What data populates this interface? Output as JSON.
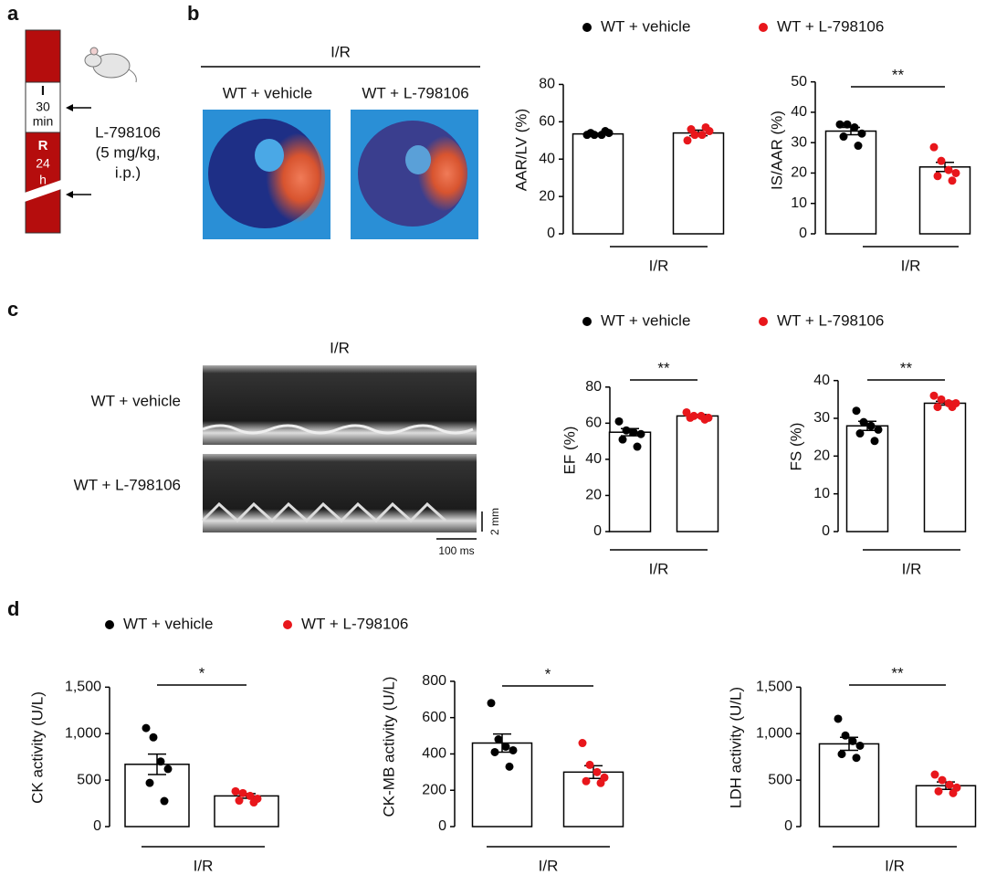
{
  "panel_labels": [
    "a",
    "b",
    "c",
    "d"
  ],
  "panel_a": {
    "phase_i": [
      "I",
      "30",
      "min"
    ],
    "phase_r": [
      "R",
      "24",
      "h"
    ],
    "drug": [
      "L-798106",
      "(5 mg/kg,",
      "i.p.)"
    ]
  },
  "panel_b": {
    "heading": "I/R",
    "image_labels": [
      "WT + vehicle",
      "WT + L-798106"
    ]
  },
  "panel_c": {
    "heading": "I/R",
    "row_labels": [
      "WT + vehicle",
      "WT + L-798106"
    ],
    "scale_bars": [
      "2 mm",
      "100 ms"
    ]
  },
  "legends": [
    {
      "entries": [
        {
          "name": "WT + vehicle",
          "color": "#000000"
        },
        {
          "name": "WT + L-798106",
          "color": "#e8161b"
        }
      ]
    },
    {
      "entries": [
        {
          "name": "WT + vehicle",
          "color": "#000000"
        },
        {
          "name": "WT + L-798106",
          "color": "#e8161b"
        }
      ]
    },
    {
      "entries": [
        {
          "name": "WT + vehicle",
          "color": "#000000"
        },
        {
          "name": "WT + L-798106",
          "color": "#e8161b"
        }
      ]
    }
  ],
  "chart_data": [
    {
      "type": "bar",
      "ylabel": "AAR/LV (%)",
      "xlabel": "I/R",
      "ylim": [
        0,
        90
      ],
      "yticks": [
        0,
        20,
        40,
        60,
        80
      ],
      "series": [
        {
          "color": "#000000",
          "mean": 53.5,
          "sem": 0.4,
          "values": [
            53,
            53,
            53,
            54,
            54,
            55
          ]
        },
        {
          "color": "#e8161b",
          "mean": 54,
          "sem": 1.5,
          "values": [
            50,
            53,
            53,
            55,
            56,
            57
          ]
        }
      ]
    },
    {
      "type": "bar",
      "ylabel": "IS/AAR (%)",
      "xlabel": "I/R",
      "significance": "**",
      "ylim": [
        0,
        55
      ],
      "yticks": [
        0,
        10,
        20,
        30,
        40,
        50
      ],
      "series": [
        {
          "color": "#000000",
          "mean": 33.8,
          "sem": 1.2,
          "values": [
            36,
            36,
            35,
            33,
            32,
            29
          ]
        },
        {
          "color": "#e8161b",
          "mean": 22,
          "sem": 1.5,
          "values": [
            28.5,
            24,
            21,
            20,
            19,
            17.5
          ]
        }
      ]
    },
    {
      "type": "bar",
      "ylabel": "EF (%)",
      "xlabel": "I/R",
      "significance": "**",
      "ylim": [
        0,
        90
      ],
      "yticks": [
        0,
        20,
        40,
        60,
        80
      ],
      "series": [
        {
          "color": "#000000",
          "mean": 55,
          "sem": 2,
          "values": [
            61,
            56,
            55,
            54,
            51,
            47
          ]
        },
        {
          "color": "#e8161b",
          "mean": 64,
          "sem": 0.8,
          "values": [
            66,
            64,
            64,
            63,
            63,
            62
          ]
        }
      ]
    },
    {
      "type": "bar",
      "ylabel": "FS (%)",
      "xlabel": "I/R",
      "significance": "**",
      "ylim": [
        0,
        45
      ],
      "yticks": [
        0,
        10,
        20,
        30,
        40
      ],
      "series": [
        {
          "color": "#000000",
          "mean": 28,
          "sem": 1.2,
          "values": [
            32,
            29,
            28,
            27,
            26,
            24
          ]
        },
        {
          "color": "#e8161b",
          "mean": 34,
          "sem": 0.5,
          "values": [
            36,
            35,
            34,
            34,
            33,
            33
          ]
        }
      ]
    },
    {
      "type": "bar",
      "ylabel": "CK activity (U/L)",
      "xlabel": "I/R",
      "significance": "*",
      "ylim": [
        0,
        1700
      ],
      "yticks": [
        0,
        500,
        {
          "value": 1000,
          "label": "1,000"
        },
        {
          "value": 1500,
          "label": "1,500"
        }
      ],
      "series": [
        {
          "color": "#000000",
          "mean": 670,
          "sem": 110,
          "values": [
            1060,
            960,
            700,
            620,
            470,
            275
          ]
        },
        {
          "color": "#e8161b",
          "mean": 330,
          "sem": 25,
          "values": [
            380,
            360,
            330,
            300,
            280,
            260
          ]
        }
      ]
    },
    {
      "type": "bar",
      "ylabel": "CK-MB activity (U/L)",
      "xlabel": "I/R",
      "significance": "*",
      "ylim": [
        0,
        880
      ],
      "yticks": [
        0,
        200,
        400,
        600,
        800
      ],
      "series": [
        {
          "color": "#000000",
          "mean": 460,
          "sem": 50,
          "values": [
            680,
            480,
            440,
            420,
            410,
            330
          ]
        },
        {
          "color": "#e8161b",
          "mean": 300,
          "sem": 35,
          "values": [
            460,
            340,
            300,
            270,
            250,
            240
          ]
        }
      ]
    },
    {
      "type": "bar",
      "ylabel": "LDH activity (U/L)",
      "xlabel": "I/R",
      "significance": "**",
      "ylim": [
        0,
        1700
      ],
      "yticks": [
        0,
        500,
        {
          "value": 1000,
          "label": "1,000"
        },
        {
          "value": 1500,
          "label": "1,500"
        }
      ],
      "series": [
        {
          "color": "#000000",
          "mean": 890,
          "sem": 70,
          "values": [
            1160,
            980,
            920,
            870,
            780,
            740
          ]
        },
        {
          "color": "#e8161b",
          "mean": 440,
          "sem": 40,
          "values": [
            560,
            500,
            450,
            420,
            380,
            360
          ]
        }
      ]
    }
  ]
}
